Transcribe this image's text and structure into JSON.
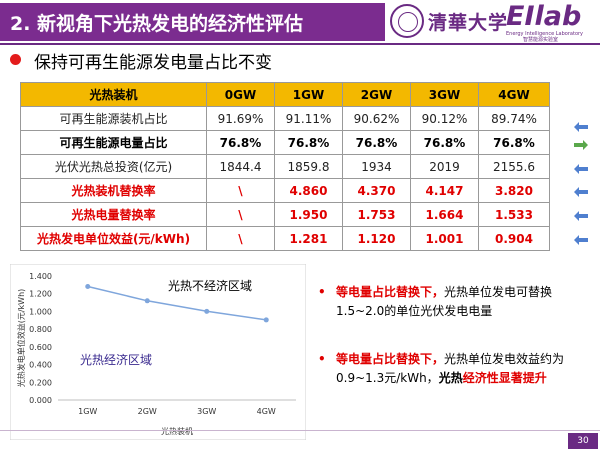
{
  "header": {
    "title": "2. 新视角下光热发电的经济性评估",
    "logo_name": "清華大学",
    "brand": "EIlab",
    "brand_sub_en": "Energy Intelligence Laboratory",
    "brand_sub_cn": "智慧能源实验室"
  },
  "subtitle": "保持可再生能源发电量占比不变",
  "table": {
    "headers": [
      "光热装机",
      "0GW",
      "1GW",
      "2GW",
      "3GW",
      "4GW"
    ],
    "rows": [
      {
        "style": "normal",
        "arrow": "blue",
        "cells": [
          "可再生能源装机占比",
          "91.69%",
          "91.11%",
          "90.62%",
          "90.12%",
          "89.74%"
        ]
      },
      {
        "style": "bold",
        "arrow": "green",
        "cells": [
          "可再生能源电量占比",
          "76.8%",
          "76.8%",
          "76.8%",
          "76.8%",
          "76.8%"
        ]
      },
      {
        "style": "normal",
        "arrow": "blue",
        "cells": [
          "光伏光热总投资(亿元)",
          "1844.4",
          "1859.8",
          "1934",
          "2019",
          "2155.6"
        ]
      },
      {
        "style": "red",
        "arrow": "blue",
        "cells": [
          "光热装机替换率",
          "\\",
          "4.860",
          "4.370",
          "4.147",
          "3.820"
        ]
      },
      {
        "style": "red",
        "arrow": "blue",
        "cells": [
          "光热电量替换率",
          "\\",
          "1.950",
          "1.753",
          "1.664",
          "1.533"
        ]
      },
      {
        "style": "red",
        "arrow": "blue",
        "cells": [
          "光热发电单位效益(元/kWh)",
          "\\",
          "1.281",
          "1.120",
          "1.001",
          "0.904"
        ]
      }
    ]
  },
  "chart_data": {
    "type": "line",
    "categories": [
      "1GW",
      "2GW",
      "3GW",
      "4GW"
    ],
    "values": [
      1.281,
      1.12,
      1.001,
      0.904
    ],
    "xlabel": "光热装机",
    "ylabel": "光热发电单位效益(元/kWh)",
    "ylim": [
      0,
      1.4
    ],
    "yticks": [
      "0.000",
      "0.200",
      "0.400",
      "0.600",
      "0.800",
      "1.000",
      "1.200",
      "1.400"
    ],
    "annotations": [
      "光热不经济区域",
      "光热经济区域"
    ],
    "line_color": "#7fa6dc",
    "grid": false
  },
  "notes": [
    {
      "red": "等电量占比替换下，",
      "normal": "光热单位发电可替换1.5~2.0的单位光伏发电电量"
    },
    {
      "red": "等电量占比替换下，",
      "normal": "光热单位发电效益约为0.9~1.3元/kWh，",
      "bold": "光热",
      "red2": "经济性显著提升"
    }
  ],
  "page_number": "30",
  "colors": {
    "title_bg": "#7b2c8f",
    "table_header": "#f3b800",
    "accent_red": "#e00000",
    "arrow_blue": "#4f7fcf",
    "arrow_green": "#5aa84b"
  }
}
